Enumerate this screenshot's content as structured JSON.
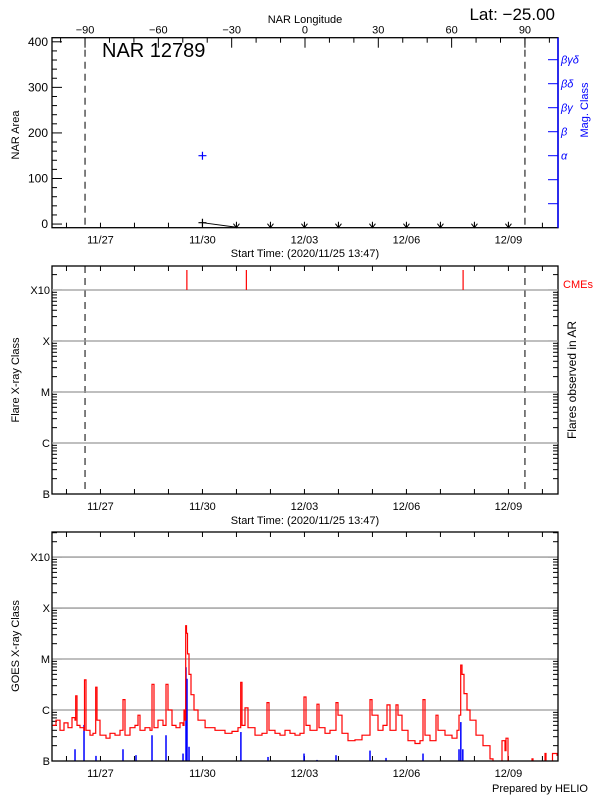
{
  "header": {
    "lat_label": "Lat: −25.00",
    "footer": "Prepared by HELIO"
  },
  "colors": {
    "axis": "#000000",
    "grid": "#999999",
    "goes": "#ff0000",
    "events": "#0000ff",
    "mag": "#0000ff",
    "cme": "#ff0000"
  },
  "chart_data": [
    {
      "type": "scatter",
      "title": "NAR 12789",
      "xlabel": "Start Time: (2020/11/25 13:47)",
      "top_xlabel": "NAR Longitude",
      "ylabel": "NAR Area",
      "y2label": "Mag. Class",
      "xlim": [
        "2020-11-25T13:47",
        "2020-12-10T11:00"
      ],
      "xticks": [
        {
          "t": "2020-11-27T00:00",
          "label": "11/27"
        },
        {
          "t": "2020-11-30T00:00",
          "label": "11/30"
        },
        {
          "t": "2020-12-03T00:00",
          "label": "12/03"
        },
        {
          "t": "2020-12-06T00:00",
          "label": "12/06"
        },
        {
          "t": "2020-12-09T00:00",
          "label": "12/09"
        }
      ],
      "longitude_calibration": {
        "lon_-90": "2020-11-26T13:06",
        "lon_90": "2020-12-09T11:40"
      },
      "lon_ticks": [
        -90,
        -60,
        -30,
        0,
        30,
        60,
        90
      ],
      "limb_longitudes": [
        -90,
        90
      ],
      "ylim": [
        -8,
        409
      ],
      "yticks": [
        0,
        100,
        200,
        300,
        400
      ],
      "mag_class_ticks": [
        "",
        "",
        "α",
        "β",
        "βγ",
        "βδ",
        "βγδ"
      ],
      "area_points": [
        {
          "t": "2020-11-30T00:00",
          "area": 3
        }
      ],
      "mag_points": [
        {
          "t": "2020-11-30T00:00",
          "class": "α"
        }
      ],
      "below_range_markers": [
        "2020-12-01T00:00",
        "2020-12-02T00:00",
        "2020-12-03T00:00",
        "2020-12-04T00:00",
        "2020-12-05T00:00",
        "2020-12-06T00:00",
        "2020-12-07T00:00",
        "2020-12-08T00:00",
        "2020-12-09T00:00"
      ]
    },
    {
      "type": "event",
      "xlabel": "Start Time: (2020/11/25 13:47)",
      "ylabel": "Flare X-ray Class",
      "y2label": "Flares observed in AR",
      "cme_label": "CMEs",
      "xlim": [
        "2020-11-25T13:47",
        "2020-12-10T11:00"
      ],
      "xticks": [
        {
          "t": "2020-11-27T00:00",
          "label": "11/27"
        },
        {
          "t": "2020-11-30T00:00",
          "label": "11/30"
        },
        {
          "t": "2020-12-03T00:00",
          "label": "12/03"
        },
        {
          "t": "2020-12-06T00:00",
          "label": "12/06"
        },
        {
          "t": "2020-12-09T00:00",
          "label": "12/09"
        }
      ],
      "yscale": "log",
      "ylim_flux": [
        1e-07,
        0.00295
      ],
      "yticks": [
        {
          "label": "B",
          "flux": 1e-07
        },
        {
          "label": "C",
          "flux": 1e-06
        },
        {
          "label": "M",
          "flux": 1e-05
        },
        {
          "label": "X",
          "flux": 0.0001
        },
        {
          "label": "X10",
          "flux": 0.001
        }
      ],
      "grid": true,
      "limb_times": [
        "2020-11-26T13:06",
        "2020-12-09T11:40"
      ],
      "cme_times": [
        "2020-11-29T13:00",
        "2020-12-01T07:00",
        "2020-12-07T16:00"
      ],
      "flares": []
    },
    {
      "type": "line",
      "ylabel": "GOES X-ray Class",
      "xlim": [
        "2020-11-25T13:47",
        "2020-12-10T11:00"
      ],
      "xticks": [
        {
          "t": "2020-11-27T00:00",
          "label": "11/27"
        },
        {
          "t": "2020-11-30T00:00",
          "label": "11/30"
        },
        {
          "t": "2020-12-03T00:00",
          "label": "12/03"
        },
        {
          "t": "2020-12-06T00:00",
          "label": "12/06"
        },
        {
          "t": "2020-12-09T00:00",
          "label": "12/09"
        }
      ],
      "yscale": "log",
      "ylim_flux": [
        1e-07,
        0.0031
      ],
      "yticks": [
        {
          "label": "B",
          "flux": 1e-07
        },
        {
          "label": "C",
          "flux": 1e-06
        },
        {
          "label": "M",
          "flux": 1e-05
        },
        {
          "label": "X",
          "flux": 0.0001
        },
        {
          "label": "X10",
          "flux": 0.001
        }
      ],
      "grid": true,
      "goes_flux": [
        [
          "2020-11-25T13:47",
          5e-07
        ],
        [
          "2020-11-25T16:36",
          6.3e-07
        ],
        [
          "2020-11-25T19:25",
          4e-07
        ],
        [
          "2020-11-25T22:15",
          5.6e-07
        ],
        [
          "2020-11-26T01:05",
          4.5e-07
        ],
        [
          "2020-11-26T03:54",
          7.1e-07
        ],
        [
          "2020-11-26T06:02",
          6.3e-07
        ],
        [
          "2020-11-26T06:32",
          1.9e-06
        ],
        [
          "2020-11-26T07:27",
          5e-07
        ],
        [
          "2020-11-26T09:33",
          4.5e-07
        ],
        [
          "2020-11-26T12:23",
          4e-07
        ],
        [
          "2020-11-26T12:44",
          3.9e-06
        ],
        [
          "2020-11-26T13:47",
          4e-07
        ],
        [
          "2020-11-26T16:37",
          3.2e-07
        ],
        [
          "2020-11-26T18:44",
          3.5e-07
        ],
        [
          "2020-11-26T20:38",
          2.8e-06
        ],
        [
          "2020-11-26T21:33",
          6.3e-07
        ],
        [
          "2020-11-26T23:40",
          3.2e-07
        ],
        [
          "2020-11-27T03:54",
          2.8e-07
        ],
        [
          "2020-11-27T06:43",
          3.5e-07
        ],
        [
          "2020-11-27T10:15",
          3.2e-07
        ],
        [
          "2020-11-27T13:47",
          4e-07
        ],
        [
          "2020-11-27T15:54",
          1.6e-06
        ],
        [
          "2020-11-27T17:19",
          3.2e-07
        ],
        [
          "2020-11-27T20:51",
          4.5e-07
        ],
        [
          "2020-11-28T00:23",
          5e-07
        ],
        [
          "2020-11-28T02:30",
          7.9e-07
        ],
        [
          "2020-11-28T03:55",
          4e-07
        ],
        [
          "2020-11-28T07:27",
          4.5e-07
        ],
        [
          "2020-11-28T10:58",
          4e-07
        ],
        [
          "2020-11-28T12:23",
          3.2e-06
        ],
        [
          "2020-11-28T13:48",
          4.5e-07
        ],
        [
          "2020-11-28T16:37",
          6.3e-07
        ],
        [
          "2020-11-28T20:09",
          5e-07
        ],
        [
          "2020-11-28T22:16",
          3.2e-06
        ],
        [
          "2020-11-28T23:41",
          1e-06
        ],
        [
          "2020-11-29T02:31",
          5e-07
        ],
        [
          "2020-11-29T05:20",
          4.5e-07
        ],
        [
          "2020-11-29T08:10",
          5.6e-07
        ],
        [
          "2020-11-29T10:17",
          5e-07
        ],
        [
          "2020-11-29T10:59",
          1e-06
        ],
        [
          "2020-11-29T11:41",
          6.3e-07
        ],
        [
          "2020-11-29T12:11",
          4.5e-05
        ],
        [
          "2020-11-29T12:45",
          3.2e-05
        ],
        [
          "2020-11-29T13:27",
          1.26e-05
        ],
        [
          "2020-11-29T14:31",
          5e-06
        ],
        [
          "2020-11-29T15:56",
          2e-06
        ],
        [
          "2020-11-29T18:03",
          1e-06
        ],
        [
          "2020-11-29T20:53",
          6.3e-07
        ],
        [
          "2020-11-30T01:50",
          4.5e-07
        ],
        [
          "2020-11-30T08:53",
          4e-07
        ],
        [
          "2020-11-30T15:57",
          3.5e-07
        ],
        [
          "2020-11-30T20:53",
          3.8e-07
        ],
        [
          "2020-12-01T01:07",
          4.5e-07
        ],
        [
          "2020-12-01T03:01",
          3.5e-06
        ],
        [
          "2020-12-01T03:56",
          5e-07
        ],
        [
          "2020-12-01T06:03",
          1.1e-06
        ],
        [
          "2020-12-01T08:10",
          4.5e-07
        ],
        [
          "2020-12-01T13:07",
          3.2e-07
        ],
        [
          "2020-12-01T18:03",
          3.5e-07
        ],
        [
          "2020-12-01T21:35",
          1.4e-06
        ],
        [
          "2020-12-01T23:00",
          4e-07
        ],
        [
          "2020-12-02T03:14",
          3.5e-07
        ],
        [
          "2020-12-02T06:45",
          3.2e-07
        ],
        [
          "2020-12-02T10:17",
          4e-07
        ],
        [
          "2020-12-02T13:49",
          3.5e-07
        ],
        [
          "2020-12-02T17:21",
          3.2e-07
        ],
        [
          "2020-12-02T20:52",
          3.5e-07
        ],
        [
          "2020-12-02T23:42",
          1.8e-06
        ],
        [
          "2020-12-03T01:06",
          5e-07
        ],
        [
          "2020-12-03T03:56",
          4e-07
        ],
        [
          "2020-12-03T08:52",
          1.3e-06
        ],
        [
          "2020-12-03T10:17",
          4.5e-07
        ],
        [
          "2020-12-03T14:31",
          3.5e-07
        ],
        [
          "2020-12-03T18:03",
          4e-07
        ],
        [
          "2020-12-03T22:17",
          1.4e-06
        ],
        [
          "2020-12-03T23:42",
          7.9e-07
        ],
        [
          "2020-12-04T02:31",
          3.5e-07
        ],
        [
          "2020-12-04T06:45",
          2.5e-07
        ],
        [
          "2020-12-04T11:42",
          2.6e-07
        ],
        [
          "2020-12-04T16:38",
          3.2e-07
        ],
        [
          "2020-12-04T20:10",
          3.2e-07
        ],
        [
          "2020-12-04T22:17",
          1.6e-06
        ],
        [
          "2020-12-04T23:42",
          7.9e-07
        ],
        [
          "2020-12-05T03:56",
          4e-07
        ],
        [
          "2020-12-05T07:28",
          5e-07
        ],
        [
          "2020-12-05T10:17",
          1.26e-06
        ],
        [
          "2020-12-05T12:25",
          4e-07
        ],
        [
          "2020-12-05T16:39",
          1.26e-06
        ],
        [
          "2020-12-05T18:04",
          7.9e-07
        ],
        [
          "2020-12-05T20:54",
          4e-07
        ],
        [
          "2020-12-06T01:08",
          2.5e-07
        ],
        [
          "2020-12-06T06:04",
          2.2e-07
        ],
        [
          "2020-12-06T09:36",
          2.5e-07
        ],
        [
          "2020-12-06T11:42",
          1.6e-06
        ],
        [
          "2020-12-06T13:08",
          3.2e-07
        ],
        [
          "2020-12-06T16:39",
          2.5e-07
        ],
        [
          "2020-12-06T20:53",
          7.9e-07
        ],
        [
          "2020-12-06T22:17",
          4e-07
        ],
        [
          "2020-12-07T03:14",
          3.2e-07
        ],
        [
          "2020-12-07T08:10",
          2.8e-07
        ],
        [
          "2020-12-07T11:42",
          4e-07
        ],
        [
          "2020-12-07T13:07",
          7.9e-07
        ],
        [
          "2020-12-07T14:19",
          7.6e-06
        ],
        [
          "2020-12-07T15:14",
          5e-06
        ],
        [
          "2020-12-07T16:38",
          2.1e-06
        ],
        [
          "2020-12-07T18:45",
          1e-06
        ],
        [
          "2020-12-07T20:53",
          6.3e-07
        ],
        [
          "2020-12-08T01:07",
          3.2e-07
        ],
        [
          "2020-12-08T06:04",
          2e-07
        ],
        [
          "2020-12-08T11:00",
          1.1e-07
        ],
        [
          "2020-12-08T13:07",
          6.3e-08
        ],
        null,
        [
          "2020-12-08T18:46",
          6.3e-08
        ],
        [
          "2020-12-08T19:30",
          2.5e-07
        ],
        [
          "2020-12-08T21:37",
          1.6e-07
        ],
        [
          "2020-12-08T22:19",
          2.8e-07
        ],
        [
          "2020-12-08T23:42",
          6.3e-08
        ],
        null,
        [
          "2020-12-09T15:58",
          6.3e-08
        ],
        [
          "2020-12-09T16:40",
          1.1e-07
        ],
        [
          "2020-12-09T17:23",
          6.3e-08
        ],
        null,
        [
          "2020-12-10T01:07",
          6.3e-08
        ],
        [
          "2020-12-10T01:49",
          1.4e-07
        ],
        [
          "2020-12-10T02:31",
          6.3e-08
        ],
        null,
        [
          "2020-12-10T06:46",
          6.3e-08
        ],
        [
          "2020-12-10T07:07",
          1.4e-07
        ],
        [
          "2020-12-10T08:53",
          1.4e-07
        ],
        [
          "2020-12-10T10:17",
          1.26e-07
        ]
      ],
      "event_bars": [
        [
          "2020-11-26T06:02",
          1.7e-07
        ],
        [
          "2020-11-26T12:23",
          5.1e-07
        ],
        [
          "2020-11-26T20:50",
          1.26e-07
        ],
        [
          "2020-11-27T15:54",
          1.7e-07
        ],
        [
          "2020-11-28T01:05",
          1.3e-07
        ],
        [
          "2020-11-28T12:23",
          3.2e-07
        ],
        [
          "2020-11-28T22:16",
          3.2e-07
        ],
        [
          "2020-11-29T10:17",
          1.4e-07
        ],
        [
          "2020-11-29T12:23",
          6.9e-06
        ],
        [
          "2020-11-29T13:05",
          4.1e-06
        ],
        [
          "2020-11-29T14:31",
          1.9e-07
        ],
        [
          "2020-12-01T03:08",
          3.7e-07
        ],
        [
          "2020-12-01T22:17",
          1.2e-07
        ],
        [
          "2020-12-02T23:42",
          1.4e-07
        ],
        [
          "2020-12-03T08:52",
          1.05e-07
        ],
        [
          "2020-12-03T22:17",
          1.3e-07
        ],
        [
          "2020-12-04T22:17",
          1.6e-07
        ],
        [
          "2020-12-05T09:35",
          1.15e-07
        ],
        [
          "2020-12-06T11:42",
          1.4e-07
        ],
        [
          "2020-12-07T13:07",
          1.7e-07
        ],
        [
          "2020-12-07T14:24",
          5.8e-07
        ],
        [
          "2020-12-07T15:48",
          1.7e-07
        ]
      ]
    }
  ]
}
